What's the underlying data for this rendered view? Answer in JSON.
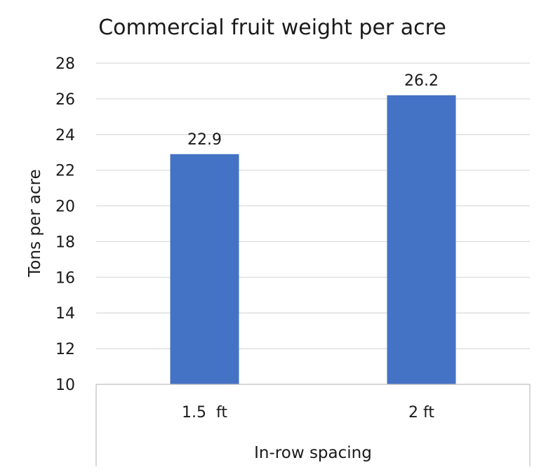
{
  "chart_data": {
    "type": "bar",
    "title": "Commercial fruit weight per acre",
    "xlabel": "In-row spacing",
    "ylabel": "Tons per acre",
    "categories": [
      "1.5  ft",
      "2 ft"
    ],
    "values": [
      22.9,
      26.2
    ],
    "data_labels": [
      "22.9",
      "26.2"
    ],
    "ylim": [
      10,
      28
    ],
    "yticks": [
      10,
      12,
      14,
      16,
      18,
      20,
      22,
      24,
      26,
      28
    ],
    "grid": true,
    "legend": "none",
    "bar_color": "#4472C4"
  }
}
